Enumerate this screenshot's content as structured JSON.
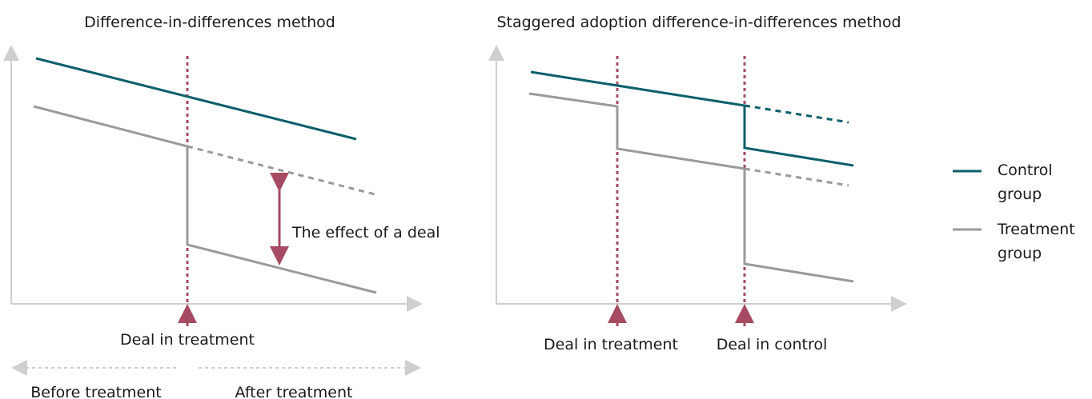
{
  "panels": [
    {
      "title": "Difference-in-differences method",
      "annotation": "The effect of a deal",
      "markers": [
        "Deal in treatment"
      ],
      "periods": [
        "Before treatment",
        "After treatment"
      ]
    },
    {
      "title": "Staggered adoption difference-in-differences method",
      "markers": [
        "Deal in treatment",
        "Deal in control"
      ]
    }
  ],
  "legend": [
    {
      "label": "Control group",
      "color": "#0d5f6a"
    },
    {
      "label": "Treatment group",
      "color": "#9a9a9a"
    }
  ]
}
